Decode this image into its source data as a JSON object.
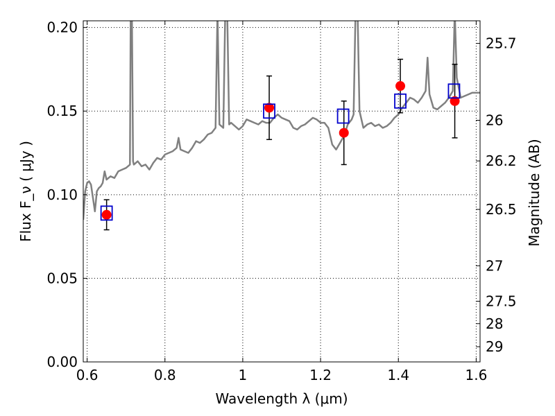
{
  "chart_data": {
    "type": "scatter",
    "xlabel": "Wavelength  λ (μm)",
    "ylabel": "Flux  F_ν  ( μJy )",
    "ylabel_right": "Magnitude (AB)",
    "xlim": [
      0.59,
      1.61
    ],
    "ylim": [
      0.0,
      0.204
    ],
    "grid": true,
    "x_ticks": [
      0.6,
      0.8,
      1.0,
      1.2,
      1.4,
      1.6
    ],
    "x_tick_labels": [
      "0.6",
      "0.8",
      "1",
      "1.2",
      "1.4",
      "1.6"
    ],
    "y_ticks": [
      0.0,
      0.05,
      0.1,
      0.15,
      0.2
    ],
    "y_tick_labels": [
      "0.00",
      "0.05",
      "0.10",
      "0.15",
      "0.20"
    ],
    "right_ticks": [
      {
        "label": "25.7",
        "flux": 0.1905
      },
      {
        "label": "26",
        "flux": 0.1445
      },
      {
        "label": "26.2",
        "flux": 0.1202
      },
      {
        "label": "26.5",
        "flux": 0.0912
      },
      {
        "label": "27",
        "flux": 0.0575
      },
      {
        "label": "27.5",
        "flux": 0.0363
      },
      {
        "label": "28",
        "flux": 0.0229
      },
      {
        "label": "29",
        "flux": 0.0091
      }
    ],
    "series": [
      {
        "kind": "line",
        "color": "#808080",
        "x": [
          0.59,
          0.595,
          0.6,
          0.605,
          0.61,
          0.615,
          0.62,
          0.625,
          0.63,
          0.635,
          0.64,
          0.645,
          0.65,
          0.66,
          0.67,
          0.68,
          0.69,
          0.7,
          0.71,
          0.712,
          0.715,
          0.718,
          0.72,
          0.73,
          0.74,
          0.75,
          0.76,
          0.77,
          0.78,
          0.79,
          0.8,
          0.81,
          0.82,
          0.83,
          0.835,
          0.84,
          0.85,
          0.86,
          0.87,
          0.88,
          0.89,
          0.9,
          0.91,
          0.92,
          0.93,
          0.935,
          0.94,
          0.945,
          0.95,
          0.955,
          0.96,
          0.965,
          0.97,
          0.98,
          0.99,
          1.0,
          1.01,
          1.02,
          1.03,
          1.04,
          1.05,
          1.06,
          1.07,
          1.08,
          1.09,
          1.1,
          1.11,
          1.12,
          1.13,
          1.14,
          1.15,
          1.16,
          1.17,
          1.18,
          1.19,
          1.2,
          1.21,
          1.22,
          1.23,
          1.24,
          1.25,
          1.26,
          1.27,
          1.28,
          1.285,
          1.29,
          1.295,
          1.3,
          1.31,
          1.32,
          1.33,
          1.34,
          1.35,
          1.36,
          1.37,
          1.38,
          1.39,
          1.4,
          1.41,
          1.42,
          1.43,
          1.44,
          1.45,
          1.46,
          1.47,
          1.475,
          1.48,
          1.49,
          1.5,
          1.51,
          1.52,
          1.53,
          1.54,
          1.545,
          1.55,
          1.56,
          1.57,
          1.58,
          1.59,
          1.6,
          1.61
        ],
        "y": [
          0.085,
          0.102,
          0.107,
          0.108,
          0.106,
          0.098,
          0.09,
          0.102,
          0.104,
          0.105,
          0.107,
          0.114,
          0.109,
          0.111,
          0.11,
          0.114,
          0.115,
          0.116,
          0.118,
          0.21,
          0.21,
          0.12,
          0.118,
          0.12,
          0.117,
          0.118,
          0.115,
          0.119,
          0.122,
          0.121,
          0.124,
          0.125,
          0.126,
          0.128,
          0.134,
          0.127,
          0.126,
          0.125,
          0.128,
          0.132,
          0.131,
          0.133,
          0.136,
          0.137,
          0.14,
          0.21,
          0.142,
          0.141,
          0.14,
          0.21,
          0.21,
          0.142,
          0.143,
          0.141,
          0.139,
          0.141,
          0.145,
          0.144,
          0.143,
          0.142,
          0.144,
          0.143,
          0.143,
          0.146,
          0.148,
          0.146,
          0.145,
          0.144,
          0.14,
          0.139,
          0.141,
          0.142,
          0.144,
          0.146,
          0.145,
          0.143,
          0.143,
          0.14,
          0.13,
          0.127,
          0.131,
          0.135,
          0.142,
          0.145,
          0.148,
          0.21,
          0.21,
          0.15,
          0.14,
          0.142,
          0.143,
          0.141,
          0.142,
          0.14,
          0.141,
          0.143,
          0.146,
          0.148,
          0.152,
          0.155,
          0.158,
          0.157,
          0.155,
          0.158,
          0.162,
          0.182,
          0.16,
          0.152,
          0.151,
          0.153,
          0.155,
          0.158,
          0.162,
          0.21,
          0.17,
          0.158,
          0.159,
          0.16,
          0.161,
          0.161,
          0.161
        ]
      },
      {
        "kind": "points-filled",
        "color": "#ff0000",
        "x": [
          0.65,
          1.068,
          1.26,
          1.405,
          1.545
        ],
        "y": [
          0.088,
          0.152,
          0.137,
          0.165,
          0.156
        ],
        "yerr": [
          0.009,
          0.019,
          0.019,
          0.016,
          0.022
        ]
      },
      {
        "kind": "points-open-square",
        "color": "#0000cc",
        "x": [
          0.65,
          1.068,
          1.258,
          1.405,
          1.543
        ],
        "y": [
          0.089,
          0.15,
          0.147,
          0.156,
          0.162
        ]
      }
    ]
  }
}
